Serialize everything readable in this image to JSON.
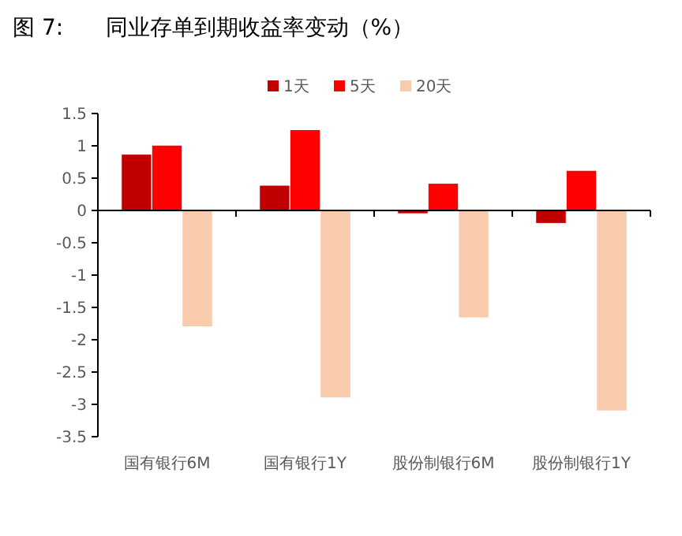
{
  "chart_data": {
    "type": "bar",
    "title": "图 7:      同业存单到期收益率变动（%）",
    "categories": [
      "国有银行6M",
      "国有银行1Y",
      "股份制银行6M",
      "股份制银行1Y"
    ],
    "series": [
      {
        "name": "1天",
        "color": "#c00000",
        "values": [
          0.87,
          0.39,
          -0.05,
          -0.2
        ]
      },
      {
        "name": "5天",
        "color": "#ff0000",
        "values": [
          1.01,
          1.25,
          0.42,
          0.62
        ]
      },
      {
        "name": "20天",
        "color": "#f8cbad",
        "values": [
          -1.8,
          -2.9,
          -1.66,
          -3.1
        ]
      }
    ],
    "ylim": [
      -3.5,
      1.5
    ],
    "yticks": [
      -3.5,
      -3,
      -2.5,
      -2,
      -1.5,
      -1,
      -0.5,
      0,
      0.5,
      1,
      1.5
    ],
    "legend": "top"
  }
}
